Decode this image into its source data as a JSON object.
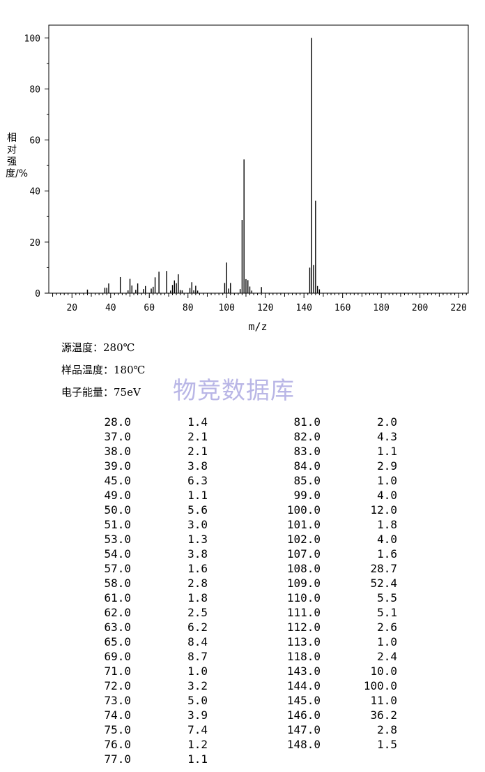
{
  "chart_data": {
    "type": "bar",
    "xlabel": "m/z",
    "ylabel": "相对强度/%",
    "xlim": [
      8,
      225
    ],
    "ylim": [
      0,
      105
    ],
    "xticks": [
      20,
      40,
      60,
      80,
      100,
      120,
      140,
      160,
      180,
      200,
      220
    ],
    "yticks": [
      0,
      20,
      40,
      60,
      80,
      100
    ],
    "x": [
      28,
      37,
      38,
      39,
      45,
      49,
      50,
      51,
      53,
      54,
      57,
      58,
      61,
      62,
      63,
      65,
      69,
      71,
      72,
      73,
      74,
      75,
      76,
      77,
      81,
      82,
      83,
      84,
      85,
      99,
      100,
      101,
      102,
      107,
      108,
      109,
      110,
      111,
      112,
      113,
      118,
      143,
      144,
      145,
      146,
      147,
      148
    ],
    "values": [
      1.4,
      2.1,
      2.1,
      3.8,
      6.3,
      1.1,
      5.6,
      3.0,
      1.3,
      3.8,
      1.6,
      2.8,
      1.8,
      2.5,
      6.2,
      8.4,
      8.7,
      1.0,
      3.2,
      5.0,
      3.9,
      7.4,
      1.2,
      1.1,
      2.0,
      4.3,
      1.1,
      2.9,
      1.0,
      4.0,
      12.0,
      1.8,
      4.0,
      1.6,
      28.7,
      52.4,
      5.5,
      5.1,
      2.6,
      1.0,
      2.4,
      10.0,
      100.0,
      11.0,
      36.2,
      2.8,
      1.5
    ]
  },
  "conditions": {
    "source_temp": "源温度：280℃",
    "sample_temp": "样品温度：180℃",
    "electron_energy": "电子能量：75eV"
  },
  "watermark": "物竞数据库",
  "table": {
    "left": [
      {
        "mz": "28.0",
        "ab": "1.4"
      },
      {
        "mz": "37.0",
        "ab": "2.1"
      },
      {
        "mz": "38.0",
        "ab": "2.1"
      },
      {
        "mz": "39.0",
        "ab": "3.8"
      },
      {
        "mz": "45.0",
        "ab": "6.3"
      },
      {
        "mz": "49.0",
        "ab": "1.1"
      },
      {
        "mz": "50.0",
        "ab": "5.6"
      },
      {
        "mz": "51.0",
        "ab": "3.0"
      },
      {
        "mz": "53.0",
        "ab": "1.3"
      },
      {
        "mz": "54.0",
        "ab": "3.8"
      },
      {
        "mz": "57.0",
        "ab": "1.6"
      },
      {
        "mz": "58.0",
        "ab": "2.8"
      },
      {
        "mz": "61.0",
        "ab": "1.8"
      },
      {
        "mz": "62.0",
        "ab": "2.5"
      },
      {
        "mz": "63.0",
        "ab": "6.2"
      },
      {
        "mz": "65.0",
        "ab": "8.4"
      },
      {
        "mz": "69.0",
        "ab": "8.7"
      },
      {
        "mz": "71.0",
        "ab": "1.0"
      },
      {
        "mz": "72.0",
        "ab": "3.2"
      },
      {
        "mz": "73.0",
        "ab": "5.0"
      },
      {
        "mz": "74.0",
        "ab": "3.9"
      },
      {
        "mz": "75.0",
        "ab": "7.4"
      },
      {
        "mz": "76.0",
        "ab": "1.2"
      },
      {
        "mz": "77.0",
        "ab": "1.1"
      }
    ],
    "right": [
      {
        "mz": "81.0",
        "ab": "2.0"
      },
      {
        "mz": "82.0",
        "ab": "4.3"
      },
      {
        "mz": "83.0",
        "ab": "1.1"
      },
      {
        "mz": "84.0",
        "ab": "2.9"
      },
      {
        "mz": "85.0",
        "ab": "1.0"
      },
      {
        "mz": "99.0",
        "ab": "4.0"
      },
      {
        "mz": "100.0",
        "ab": "12.0"
      },
      {
        "mz": "101.0",
        "ab": "1.8"
      },
      {
        "mz": "102.0",
        "ab": "4.0"
      },
      {
        "mz": "107.0",
        "ab": "1.6"
      },
      {
        "mz": "108.0",
        "ab": "28.7"
      },
      {
        "mz": "109.0",
        "ab": "52.4"
      },
      {
        "mz": "110.0",
        "ab": "5.5"
      },
      {
        "mz": "111.0",
        "ab": "5.1"
      },
      {
        "mz": "112.0",
        "ab": "2.6"
      },
      {
        "mz": "113.0",
        "ab": "1.0"
      },
      {
        "mz": "118.0",
        "ab": "2.4"
      },
      {
        "mz": "143.0",
        "ab": "10.0"
      },
      {
        "mz": "144.0",
        "ab": "100.0"
      },
      {
        "mz": "145.0",
        "ab": "11.0"
      },
      {
        "mz": "146.0",
        "ab": "36.2"
      },
      {
        "mz": "147.0",
        "ab": "2.8"
      },
      {
        "mz": "148.0",
        "ab": "1.5"
      }
    ]
  }
}
